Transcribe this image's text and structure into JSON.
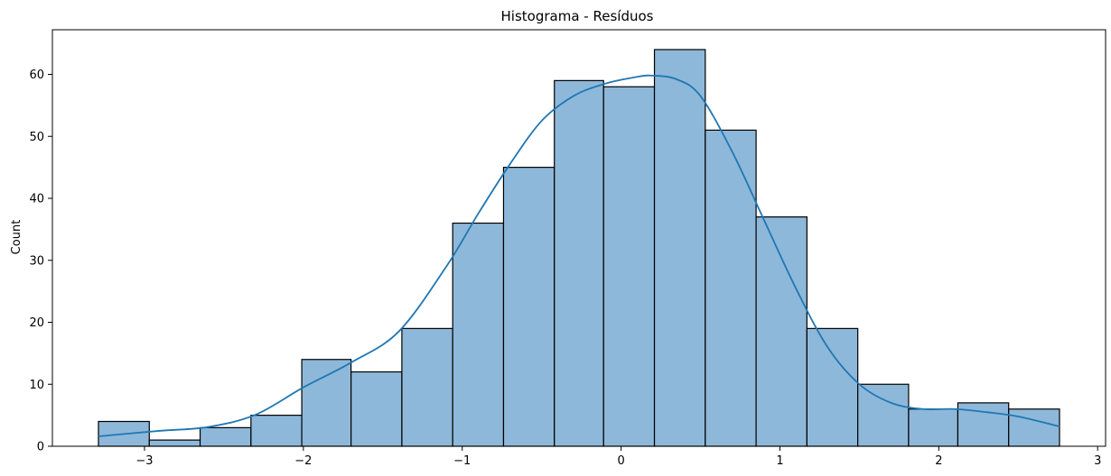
{
  "chart_data": {
    "type": "bar",
    "subtype": "histogram",
    "title": "Histograma - Resíduos",
    "xlabel": "",
    "ylabel": "Count",
    "bin_edges": [
      -3.29,
      -2.97,
      -2.65,
      -2.33,
      -2.01,
      -1.7,
      -1.38,
      -1.06,
      -0.74,
      -0.42,
      -0.11,
      0.21,
      0.53,
      0.85,
      1.17,
      1.49,
      1.81,
      2.12,
      2.44,
      2.76
    ],
    "values": [
      4,
      1,
      3,
      5,
      14,
      12,
      19,
      36,
      45,
      59,
      58,
      64,
      51,
      37,
      19,
      10,
      6,
      7,
      6
    ],
    "kde": {
      "x": [
        -3.29,
        -2.9,
        -2.6,
        -2.3,
        -2.0,
        -1.7,
        -1.4,
        -1.1,
        -0.9,
        -0.7,
        -0.5,
        -0.3,
        -0.1,
        0.1,
        0.2,
        0.35,
        0.5,
        0.7,
        0.9,
        1.1,
        1.3,
        1.5,
        1.7,
        1.9,
        2.1,
        2.3,
        2.5,
        2.76
      ],
      "y": [
        1.6,
        2.5,
        3.1,
        5.1,
        9.5,
        13.5,
        18.5,
        29.0,
        37.5,
        45.5,
        52.5,
        56.5,
        58.5,
        59.6,
        59.8,
        59.2,
        56.5,
        47.5,
        36.5,
        25.5,
        16.0,
        10.0,
        7.0,
        6.0,
        6.0,
        5.5,
        4.8,
        3.2
      ]
    },
    "xlim": [
      -3.58,
      3.05
    ],
    "ylim": [
      0,
      67.2
    ],
    "xticks": [
      -3,
      -2,
      -1,
      0,
      1,
      2,
      3
    ],
    "xtick_labels": [
      "−3",
      "−2",
      "−1",
      "0",
      "1",
      "2",
      "3"
    ],
    "yticks": [
      0,
      10,
      20,
      30,
      40,
      50,
      60
    ],
    "ytick_labels": [
      "0",
      "10",
      "20",
      "30",
      "40",
      "50",
      "60"
    ],
    "colors": {
      "bar_fill": "#8eb8d9",
      "bar_edge": "#000000",
      "kde_line": "#1f77b4"
    },
    "grid": false
  }
}
